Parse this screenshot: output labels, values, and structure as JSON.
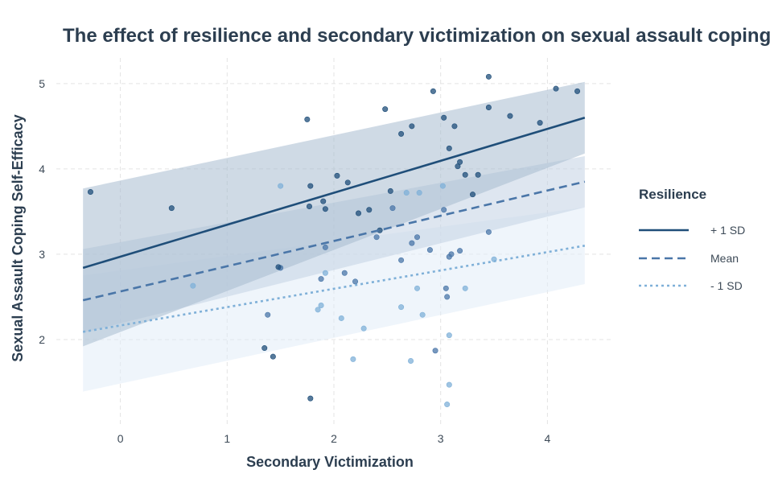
{
  "chart_data": {
    "type": "line",
    "title": "The effect of resilience and secondary victimization on sexual assault coping self-efficacy",
    "xlabel": "Secondary Victimization",
    "ylabel": "Sexual Assault Coping Self-Efficacy",
    "xlim": [
      -0.6,
      4.6
    ],
    "ylim": [
      1.0,
      5.3
    ],
    "xticks": [
      0,
      1,
      2,
      3,
      4
    ],
    "yticks": [
      2,
      3,
      4,
      5
    ],
    "grid": true,
    "legend": {
      "title": "Resilience",
      "placement": "right",
      "entries": [
        "+ 1 SD",
        "Mean",
        "- 1 SD"
      ]
    },
    "series": [
      {
        "name": "+ 1 SD",
        "color": "#1f4e79",
        "fill": "#a7bccf",
        "dash": "solid",
        "x": [
          -0.35,
          4.35
        ],
        "y": [
          2.84,
          4.6
        ],
        "ci_lower": [
          1.92,
          4.18
        ],
        "ci_upper": [
          3.77,
          5.02
        ],
        "points": [
          [
            -0.28,
            3.73
          ],
          [
            0.48,
            3.54
          ],
          [
            1.35,
            1.9
          ],
          [
            1.43,
            1.8
          ],
          [
            1.48,
            2.85
          ],
          [
            1.75,
            4.58
          ],
          [
            1.77,
            3.56
          ],
          [
            1.78,
            3.8
          ],
          [
            1.78,
            1.31
          ],
          [
            1.9,
            3.62
          ],
          [
            1.92,
            3.53
          ],
          [
            2.03,
            3.92
          ],
          [
            2.13,
            3.84
          ],
          [
            2.23,
            3.48
          ],
          [
            2.33,
            3.52
          ],
          [
            2.43,
            3.28
          ],
          [
            2.48,
            4.7
          ],
          [
            2.53,
            3.74
          ],
          [
            2.63,
            4.41
          ],
          [
            2.73,
            4.5
          ],
          [
            2.93,
            4.91
          ],
          [
            3.03,
            4.6
          ],
          [
            3.08,
            4.24
          ],
          [
            3.13,
            4.5
          ],
          [
            3.16,
            4.03
          ],
          [
            3.18,
            4.08
          ],
          [
            3.23,
            3.93
          ],
          [
            3.3,
            3.7
          ],
          [
            3.35,
            3.93
          ],
          [
            3.45,
            4.72
          ],
          [
            3.45,
            5.08
          ],
          [
            3.65,
            4.62
          ],
          [
            3.93,
            4.54
          ],
          [
            4.08,
            4.94
          ],
          [
            4.28,
            4.91
          ]
        ]
      },
      {
        "name": "Mean",
        "color": "#4a76a8",
        "fill": "#c3d2e3",
        "dash": "dashed",
        "x": [
          -0.35,
          4.35
        ],
        "y": [
          2.46,
          3.85
        ],
        "ci_lower": [
          2.08,
          3.55
        ],
        "ci_upper": [
          3.06,
          4.15
        ],
        "points": [
          [
            1.38,
            2.29
          ],
          [
            1.5,
            2.84
          ],
          [
            1.88,
            2.71
          ],
          [
            1.92,
            3.08
          ],
          [
            2.1,
            2.78
          ],
          [
            2.2,
            2.68
          ],
          [
            2.4,
            3.2
          ],
          [
            2.55,
            3.54
          ],
          [
            2.63,
            2.93
          ],
          [
            2.73,
            3.13
          ],
          [
            2.78,
            3.2
          ],
          [
            2.9,
            3.05
          ],
          [
            2.95,
            1.87
          ],
          [
            3.03,
            3.52
          ],
          [
            3.05,
            2.6
          ],
          [
            3.06,
            2.5
          ],
          [
            3.08,
            2.97
          ],
          [
            3.1,
            3.0
          ],
          [
            3.18,
            3.04
          ],
          [
            3.45,
            3.26
          ]
        ]
      },
      {
        "name": "- 1 SD",
        "color": "#7fb0d8",
        "fill": "#e1edf8",
        "dash": "dotted",
        "x": [
          -0.35,
          4.35
        ],
        "y": [
          2.09,
          3.1
        ],
        "ci_lower": [
          1.39,
          2.65
        ],
        "ci_upper": [
          2.75,
          3.55
        ],
        "points": [
          [
            0.68,
            2.63
          ],
          [
            1.5,
            3.8
          ],
          [
            1.85,
            2.35
          ],
          [
            1.88,
            2.4
          ],
          [
            1.92,
            2.78
          ],
          [
            2.07,
            2.25
          ],
          [
            2.18,
            1.77
          ],
          [
            2.28,
            2.13
          ],
          [
            2.63,
            2.38
          ],
          [
            2.68,
            3.72
          ],
          [
            2.72,
            1.75
          ],
          [
            2.78,
            2.6
          ],
          [
            2.8,
            3.72
          ],
          [
            2.83,
            2.29
          ],
          [
            3.02,
            3.8
          ],
          [
            3.06,
            1.24
          ],
          [
            3.08,
            1.47
          ],
          [
            3.08,
            2.05
          ],
          [
            3.23,
            2.6
          ],
          [
            3.5,
            2.94
          ]
        ]
      }
    ]
  }
}
